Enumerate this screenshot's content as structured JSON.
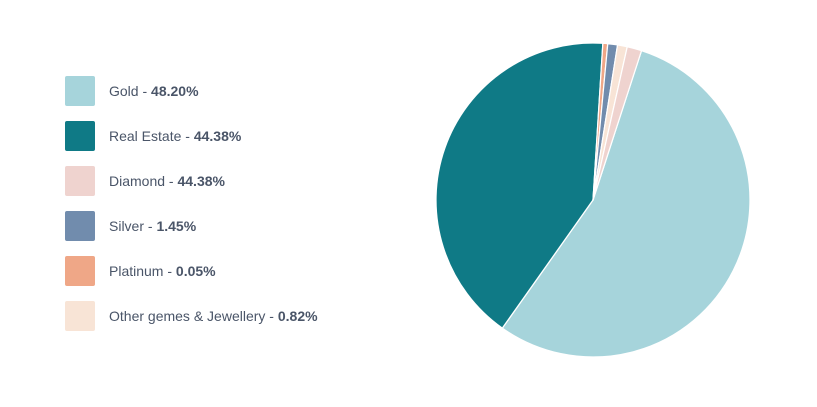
{
  "chart_data": {
    "type": "pie",
    "categories": [
      "Gold",
      "Real Estate",
      "Diamond",
      "Silver",
      "Platinum",
      "Other gemes & Jewellery"
    ],
    "values": [
      48.2,
      44.38,
      44.38,
      1.45,
      0.05,
      0.82
    ],
    "value_labels": [
      "48.20%",
      "44.38%",
      "44.38%",
      "1.45%",
      "0.05%",
      "0.82%"
    ],
    "colors": [
      "#a6d4db",
      "#0f7a86",
      "#efd3cf",
      "#718cad",
      "#efa787",
      "#f8e4d6"
    ],
    "legend": "left",
    "title": "",
    "xlabel": "",
    "ylabel": "",
    "grid": false
  }
}
